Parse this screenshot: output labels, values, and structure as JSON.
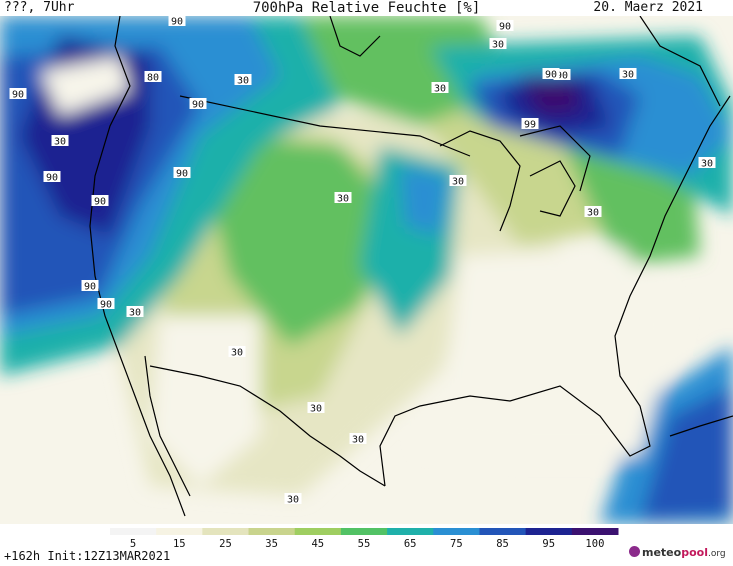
{
  "header": {
    "left": "???, 7Uhr",
    "title": "700hPa Relative Feuchte [%]",
    "right": "20. Maerz 2021"
  },
  "footer": {
    "init": "+162h Init:12Z13MAR2021"
  },
  "logo": {
    "prefix": "meteo",
    "brand": "pool",
    "tld": ".org"
  },
  "legend": {
    "labels": [
      "5",
      "15",
      "25",
      "35",
      "45",
      "55",
      "65",
      "75",
      "85",
      "95",
      "100"
    ],
    "colors": [
      "#f4f4f4",
      "#f6f3e3",
      "#e4e4bd",
      "#c9d48d",
      "#9fce61",
      "#52c265",
      "#1fb0aa",
      "#2a8fd3",
      "#2255b8",
      "#1d2391",
      "#3b1170"
    ]
  },
  "map": {
    "colors": {
      "land_dry": "#f7f5ea",
      "low": "#e6e6c4",
      "mid": "#c8d68e",
      "green": "#62c060",
      "teal": "#1fb0aa",
      "blue": "#2a8fd3",
      "dark_blue": "#2255b8",
      "navy": "#1d2391",
      "purple": "#3b1170",
      "coastline": "#000000"
    },
    "value_labels": [
      "90",
      "30",
      "90",
      "80",
      "30",
      "90",
      "30",
      "30",
      "90",
      "99",
      "30",
      "30",
      "90",
      "90",
      "90",
      "30",
      "90",
      "90",
      "30",
      "90",
      "90",
      "30",
      "30",
      "30",
      "30",
      "30",
      "30"
    ]
  }
}
